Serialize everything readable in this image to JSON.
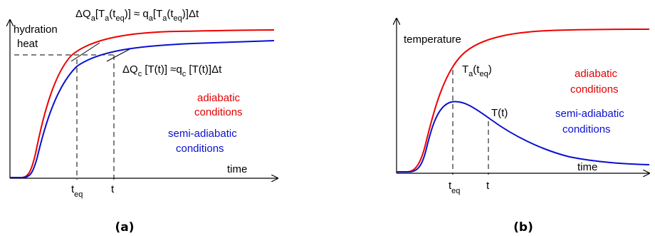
{
  "panel_a": {
    "y_label_line1": "hydration",
    "y_label_line2": "heat",
    "x_label": "time",
    "eq_top": {
      "dq": "ΔQ",
      "a1": "a",
      "p1": "[T",
      "a2": "a",
      "p2": "(t",
      "eq1": "eq",
      "p3": ")] ≈ q",
      "a3": "a",
      "p4": "[T",
      "a4": "a",
      "p5": "(t",
      "eq2": "eq",
      "p6": ")]Δt"
    },
    "eq_mid": {
      "dq": "ΔQ",
      "c1": "c",
      "p1": " [T(t)] ≈q",
      "c2": "c",
      "p2": " [T(t)]Δt"
    },
    "legend_red_1": "adiabatic",
    "legend_red_2": "conditions",
    "legend_blue_1": "semi-adiabatic",
    "legend_blue_2": "conditions",
    "tick_teq_t": "t",
    "tick_teq_sub": "eq",
    "tick_t": "t",
    "caption": "(a)"
  },
  "panel_b": {
    "y_label": "temperature",
    "x_label": "time",
    "ta_label": "T",
    "ta_sub": "a",
    "ta_rest": "(t",
    "ta_eq": "eq",
    "ta_close": ")",
    "tt_label": "T(t)",
    "legend_red_1": "adiabatic",
    "legend_red_2": "conditions",
    "legend_blue_1": "semi-adiabatic",
    "legend_blue_2": "conditions",
    "tick_teq_t": "t",
    "tick_teq_sub": "eq",
    "tick_t": "t",
    "caption": "(b)"
  },
  "colors": {
    "adiabatic": "#ee0000",
    "semi_adiabatic": "#0a10d0"
  }
}
